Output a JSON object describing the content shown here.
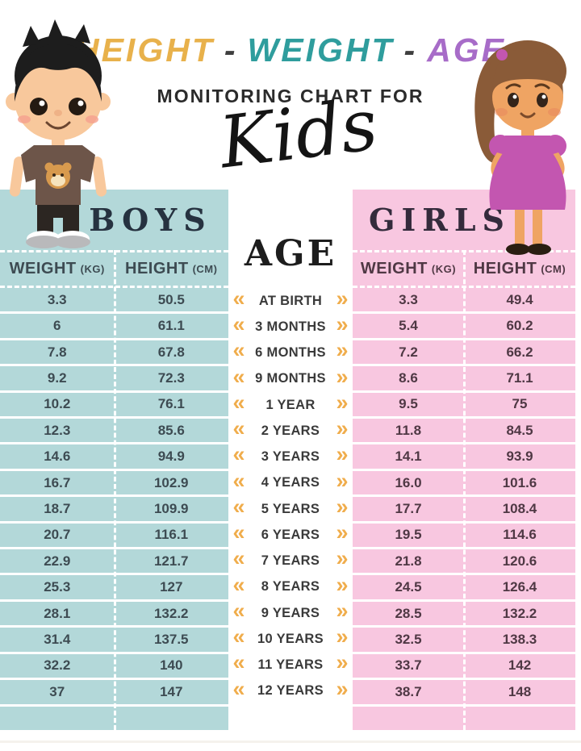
{
  "header": {
    "title_parts": [
      {
        "text": "HEIGHT",
        "color": "#e8b14b"
      },
      {
        "text": "-",
        "color": "#3f3f3f"
      },
      {
        "text": "WEIGHT",
        "color": "#2f9d9d"
      },
      {
        "text": "-",
        "color": "#3f3f3f"
      },
      {
        "text": "AGE",
        "color": "#a76cc8"
      }
    ],
    "subtitle": "MONITORING CHART FOR",
    "script_word": "Kids"
  },
  "boys": {
    "label": "BOYS",
    "columns": [
      {
        "name": "WEIGHT",
        "unit": "(KG)"
      },
      {
        "name": "HEIGHT",
        "unit": "(CM)"
      }
    ],
    "rows": [
      {
        "weight": "3.3",
        "height": "50.5"
      },
      {
        "weight": "6",
        "height": "61.1"
      },
      {
        "weight": "7.8",
        "height": "67.8"
      },
      {
        "weight": "9.2",
        "height": "72.3"
      },
      {
        "weight": "10.2",
        "height": "76.1"
      },
      {
        "weight": "12.3",
        "height": "85.6"
      },
      {
        "weight": "14.6",
        "height": "94.9"
      },
      {
        "weight": "16.7",
        "height": "102.9"
      },
      {
        "weight": "18.7",
        "height": "109.9"
      },
      {
        "weight": "20.7",
        "height": "116.1"
      },
      {
        "weight": "22.9",
        "height": "121.7"
      },
      {
        "weight": "25.3",
        "height": "127"
      },
      {
        "weight": "28.1",
        "height": "132.2"
      },
      {
        "weight": "31.4",
        "height": "137.5"
      },
      {
        "weight": "32.2",
        "height": "140"
      },
      {
        "weight": "37",
        "height": "147"
      }
    ]
  },
  "girls": {
    "label": "GIRLS",
    "columns": [
      {
        "name": "WEIGHT",
        "unit": "(KG)"
      },
      {
        "name": "HEIGHT",
        "unit": "(CM)"
      }
    ],
    "rows": [
      {
        "weight": "3.3",
        "height": "49.4"
      },
      {
        "weight": "5.4",
        "height": "60.2"
      },
      {
        "weight": "7.2",
        "height": "66.2"
      },
      {
        "weight": "8.6",
        "height": "71.1"
      },
      {
        "weight": "9.5",
        "height": "75"
      },
      {
        "weight": "11.8",
        "height": "84.5"
      },
      {
        "weight": "14.1",
        "height": "93.9"
      },
      {
        "weight": "16.0",
        "height": "101.6"
      },
      {
        "weight": "17.7",
        "height": "108.4"
      },
      {
        "weight": "19.5",
        "height": "114.6"
      },
      {
        "weight": "21.8",
        "height": "120.6"
      },
      {
        "weight": "24.5",
        "height": "126.4"
      },
      {
        "weight": "28.5",
        "height": "132.2"
      },
      {
        "weight": "32.5",
        "height": "138.3"
      },
      {
        "weight": "33.7",
        "height": "142"
      },
      {
        "weight": "38.7",
        "height": "148"
      }
    ]
  },
  "ages": {
    "label": "AGE",
    "rows": [
      "AT BIRTH",
      "3 MONTHS",
      "6 MONTHS",
      "9 MONTHS",
      "1 YEAR",
      "2 YEARS",
      "3 YEARS",
      "4 YEARS",
      "5 YEARS",
      "6 YEARS",
      "7 YEARS",
      "8 YEARS",
      "9 YEARS",
      "10 YEARS",
      "11 YEARS",
      "12 YEARS"
    ]
  },
  "icons": {
    "chevrons_left": "«",
    "chevrons_right": "»"
  },
  "colors": {
    "boys_bg": "#b3d8d9",
    "girls_bg": "#f8c7e0",
    "boys_text": "#3d4b52",
    "girls_text": "#4f3844",
    "accent_orange": "#f0ad4c"
  },
  "chart_data": {
    "type": "table",
    "title": "HEIGHT - WEIGHT - AGE MONITORING CHART FOR Kids",
    "categories": [
      "AT BIRTH",
      "3 MONTHS",
      "6 MONTHS",
      "9 MONTHS",
      "1 YEAR",
      "2 YEARS",
      "3 YEARS",
      "4 YEARS",
      "5 YEARS",
      "6 YEARS",
      "7 YEARS",
      "8 YEARS",
      "9 YEARS",
      "10 YEARS",
      "11 YEARS",
      "12 YEARS"
    ],
    "series": [
      {
        "name": "Boys Weight (kg)",
        "values": [
          3.3,
          6,
          7.8,
          9.2,
          10.2,
          12.3,
          14.6,
          16.7,
          18.7,
          20.7,
          22.9,
          25.3,
          28.1,
          31.4,
          32.2,
          37
        ]
      },
      {
        "name": "Boys Height (cm)",
        "values": [
          50.5,
          61.1,
          67.8,
          72.3,
          76.1,
          85.6,
          94.9,
          102.9,
          109.9,
          116.1,
          121.7,
          127,
          132.2,
          137.5,
          140,
          147
        ]
      },
      {
        "name": "Girls Weight (kg)",
        "values": [
          3.3,
          5.4,
          7.2,
          8.6,
          9.5,
          11.8,
          14.1,
          16.0,
          17.7,
          19.5,
          21.8,
          24.5,
          28.5,
          32.5,
          33.7,
          38.7
        ]
      },
      {
        "name": "Girls Height (cm)",
        "values": [
          49.4,
          60.2,
          66.2,
          71.1,
          75,
          84.5,
          93.9,
          101.6,
          108.4,
          114.6,
          120.6,
          126.4,
          132.2,
          138.3,
          142,
          148
        ]
      }
    ]
  }
}
